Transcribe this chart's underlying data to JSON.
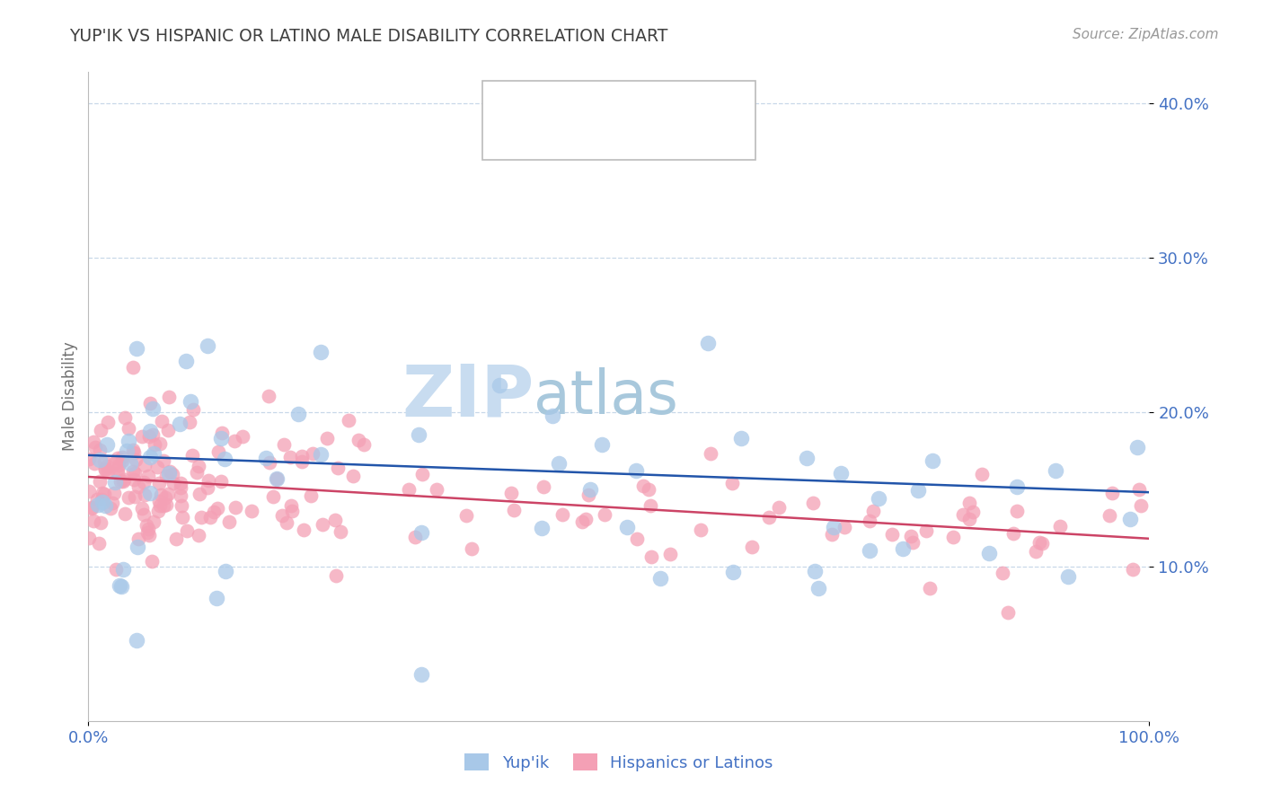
{
  "title": "YUP'IK VS HISPANIC OR LATINO MALE DISABILITY CORRELATION CHART",
  "source": "Source: ZipAtlas.com",
  "ylabel": "Male Disability",
  "xlim": [
    0,
    1.0
  ],
  "ylim": [
    0,
    0.42
  ],
  "yticks": [
    0.1,
    0.2,
    0.3,
    0.4
  ],
  "ytick_labels": [
    "10.0%",
    "20.0%",
    "30.0%",
    "40.0%"
  ],
  "xtick_labels": [
    "0.0%",
    "100.0%"
  ],
  "blue_color": "#A8C8E8",
  "pink_color": "#F4A0B5",
  "blue_line_color": "#2255AA",
  "pink_line_color": "#CC4466",
  "title_color": "#404040",
  "axis_label_color": "#4472C4",
  "grid_color": "#C8D8E8",
  "watermark_zip_color": "#C8DCF0",
  "watermark_atlas_color": "#A0C0DC",
  "blue_line_start": 0.172,
  "blue_line_end": 0.148,
  "pink_line_start": 0.158,
  "pink_line_end": 0.118
}
